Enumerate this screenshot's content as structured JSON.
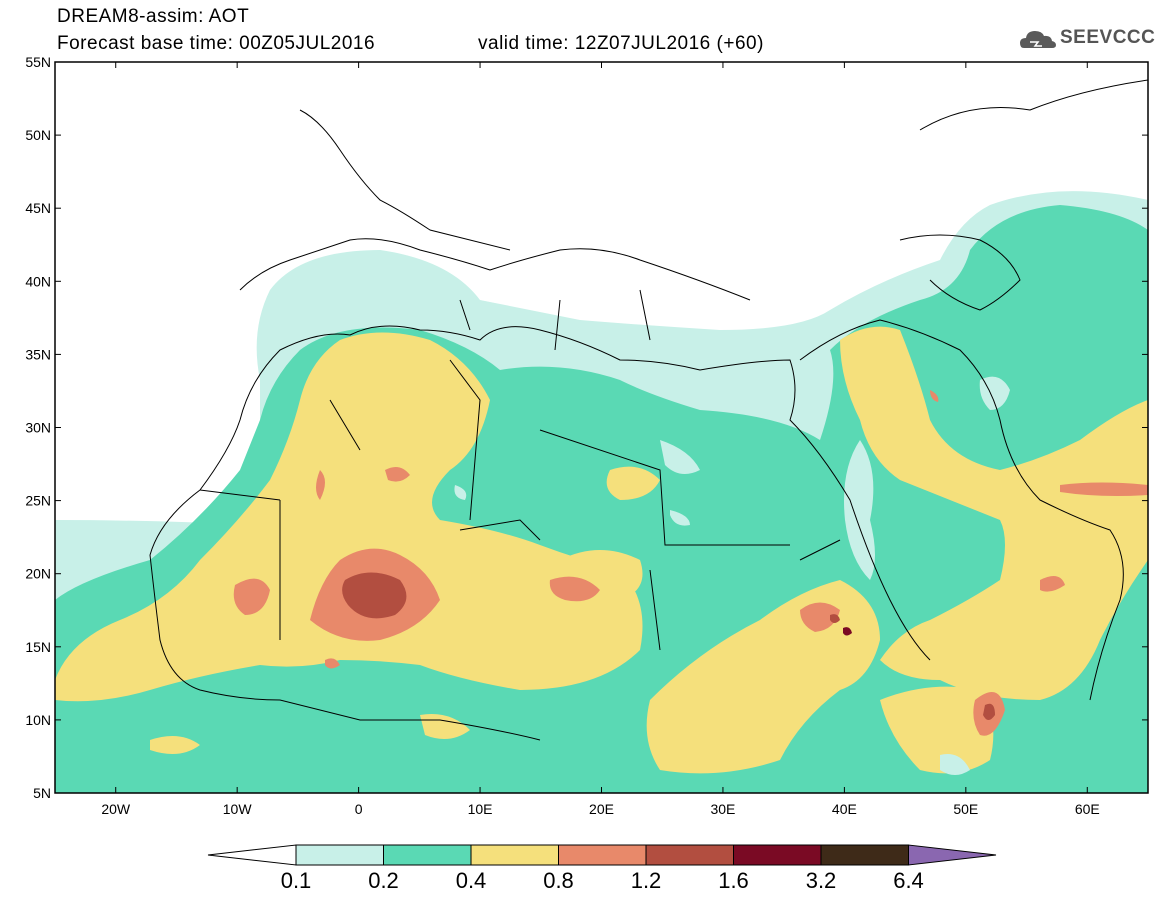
{
  "header": {
    "title": "DREAM8-assim: AOT",
    "base_time": "Forecast base time: 00Z05JUL2016",
    "valid_time": "valid time: 12Z07JUL2016 (+60)",
    "logo_text": "SEEVCCC"
  },
  "map": {
    "lat_labels": [
      "55N",
      "50N",
      "45N",
      "40N",
      "35N",
      "30N",
      "25N",
      "20N",
      "15N",
      "10N",
      "5N"
    ],
    "lon_labels": [
      "20W",
      "10W",
      "0",
      "10E",
      "20E",
      "30E",
      "40E",
      "50E",
      "60E"
    ],
    "colors": {
      "c01": "#c8f0e8",
      "c02": "#5ad9b4",
      "c04": "#f5e07c",
      "c08": "#e8896a",
      "c12": "#b24e40",
      "c16": "#7a0a24",
      "c32": "#3e2a18",
      "c64": "#8a67b0"
    }
  },
  "colorbar": {
    "labels": [
      "0.1",
      "0.2",
      "0.4",
      "0.8",
      "1.2",
      "1.6",
      "3.2",
      "6.4"
    ],
    "colors": [
      "#c8f0e8",
      "#5ad9b4",
      "#f5e07c",
      "#e8896a",
      "#b24e40",
      "#7a0a24",
      "#3e2a18"
    ],
    "over_color": "#8a67b0",
    "under_color": "#ffffff"
  }
}
